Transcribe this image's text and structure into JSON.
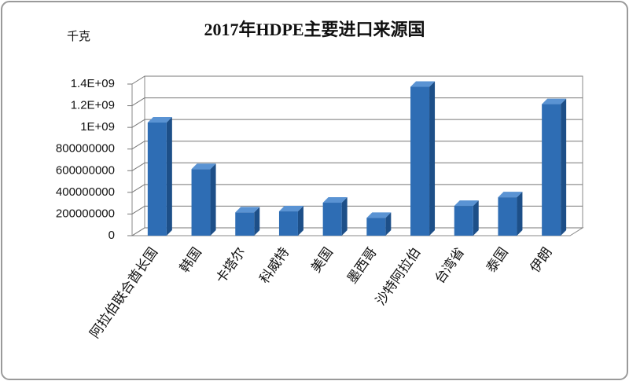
{
  "chart_data": {
    "type": "bar3d",
    "title": "2017年HDPE主要进口来源国",
    "y_label": "千克",
    "categories": [
      "阿拉伯联合酋长国",
      "韩国",
      "卡塔尔",
      "科威特",
      "美国",
      "墨西哥",
      "沙特阿拉伯",
      "台湾省",
      "泰国",
      "伊朗"
    ],
    "values": [
      1030000000,
      600000000,
      200000000,
      210000000,
      290000000,
      150000000,
      1360000000,
      260000000,
      340000000,
      1200000000
    ],
    "color": "#2e6db4",
    "ylim": [
      0,
      1400000000
    ],
    "yticks": [
      0,
      200000000,
      400000000,
      600000000,
      800000000,
      {
        "value": 1000000000,
        "label": "1E+09"
      },
      {
        "value": 1200000000,
        "label": "1.2E+09"
      },
      {
        "value": 1400000000,
        "label": "1.4E+09"
      }
    ],
    "grid": true
  }
}
